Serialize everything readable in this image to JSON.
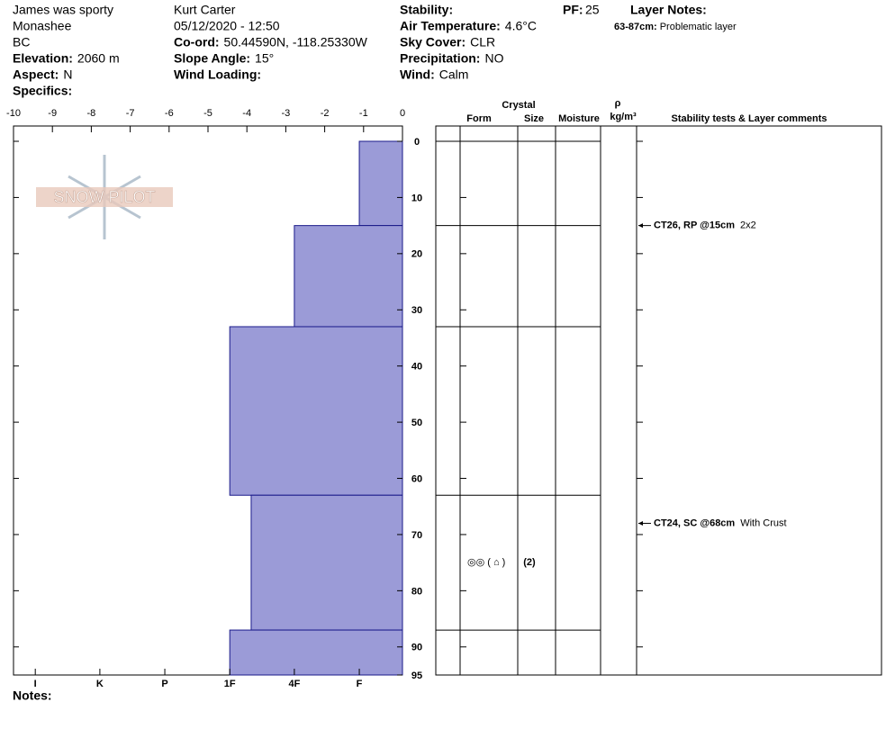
{
  "header": {
    "col1": {
      "lines": [
        "James was sporty",
        "Monashee",
        "BC"
      ],
      "fields": [
        {
          "label": "Elevation:",
          "value": "2060 m"
        },
        {
          "label": "Aspect:",
          "value": "N"
        },
        {
          "label": "Specifics:"
        }
      ]
    },
    "col2": {
      "lines": [
        "Kurt Carter"
      ],
      "fields": [
        {
          "label": "05/12/2020 - 12:50"
        },
        {
          "label": "Co-ord:",
          "value": "50.44590N, -118.25330W"
        },
        {
          "label": "Slope Angle:",
          "value": "15°"
        },
        {
          "label": "Wind Loading:"
        }
      ]
    },
    "col3": {
      "fields": [
        {
          "label": "Stability:"
        },
        {
          "label": "Air Temperature:",
          "value": "4.6°C"
        },
        {
          "label": "Sky Cover:",
          "value": "CLR"
        },
        {
          "label": "Precipitation:",
          "value": "NO"
        },
        {
          "label": "Wind:",
          "value": "Calm"
        }
      ]
    },
    "pf": {
      "label": "PF:",
      "value": "25"
    },
    "layer_notes": {
      "title": "Layer Notes:",
      "items": [
        {
          "range": "63-87cm:",
          "text": "Problematic layer"
        }
      ]
    },
    "logo": "SNOW PILOT",
    "notes": "Notes:"
  },
  "table": {
    "crystal": "Crystal",
    "form": "Form",
    "size": "Size",
    "moisture": "Moisture",
    "rho": "ρ",
    "density_unit": "kg/m³",
    "comments": "Stability tests & Layer comments"
  },
  "chart_data": {
    "type": "snow-profile",
    "xlim": [
      -10,
      0
    ],
    "xticks": [
      -10,
      -9,
      -8,
      -7,
      -6,
      -5,
      -4,
      -3,
      -2,
      -1,
      0
    ],
    "hardness_ticks": [
      {
        "value": -9.44,
        "label": "I"
      },
      {
        "value": -7.78,
        "label": "K"
      },
      {
        "value": -6.11,
        "label": "P"
      },
      {
        "value": -4.44,
        "label": "1F"
      },
      {
        "value": -2.78,
        "label": "4F"
      },
      {
        "value": -1.11,
        "label": "F"
      }
    ],
    "ylim": [
      0,
      95
    ],
    "yticks": [
      0,
      10,
      20,
      30,
      40,
      50,
      60,
      70,
      80,
      90,
      95
    ],
    "color": "#9b9bd7",
    "layers": [
      {
        "top": 0,
        "bottom": 15,
        "hardness": -1.11
      },
      {
        "top": 15,
        "bottom": 33,
        "hardness": -2.78
      },
      {
        "top": 33,
        "bottom": 63,
        "hardness": -4.44
      },
      {
        "top": 63,
        "bottom": 87,
        "hardness": -3.89
      },
      {
        "top": 87,
        "bottom": 95,
        "hardness": -4.44
      }
    ],
    "tests": [
      {
        "depth": 15,
        "label": "CT26, RP @15cm",
        "comment": "2x2"
      },
      {
        "depth": 68,
        "label": "CT24, SC @68cm",
        "comment": "With Crust"
      }
    ],
    "crystals": [
      {
        "depth": 75,
        "form": "◎◎ ( ⌂ )",
        "size": "(2)"
      }
    ]
  }
}
